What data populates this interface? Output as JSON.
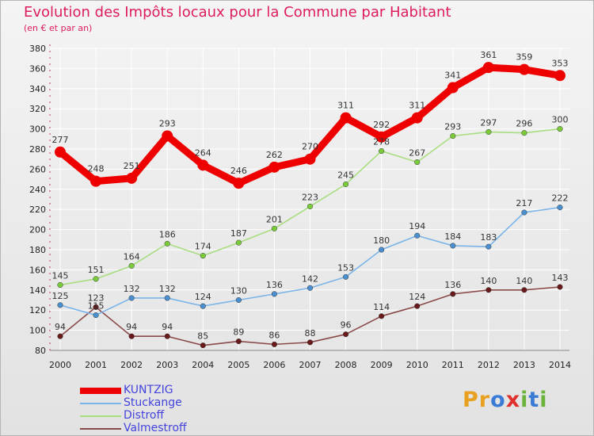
{
  "title": "Evolution des Impôts locaux pour la Commune par Habitant",
  "subtitle": "(en € et par an)",
  "logo_text": "Proxiti",
  "colors": {
    "title": "#dd1d5b",
    "axis_text": "#222222",
    "grid": "#ffffff",
    "legend_text": "#4444dd",
    "logo": [
      "#e8a020",
      "#e8a020",
      "#3a7bd5",
      "#e0302c",
      "#6bb33a",
      "#3a7bd5",
      "#6bb33a"
    ]
  },
  "chart_data": {
    "type": "line",
    "x": [
      "2000",
      "2001",
      "2002",
      "2003",
      "2004",
      "2005",
      "2006",
      "2007",
      "2008",
      "2009",
      "2010",
      "2011",
      "2012",
      "2013",
      "2014"
    ],
    "ylim": [
      80,
      380
    ],
    "yticks": [
      80,
      100,
      120,
      140,
      160,
      180,
      200,
      220,
      240,
      260,
      280,
      300,
      320,
      340,
      360,
      380
    ],
    "grid": true,
    "legend_position": "bottom-left",
    "series": [
      {
        "name": "KUNTZIG",
        "color": "#ee0000",
        "line_color": "#ee0000",
        "emphasis": true,
        "values": [
          277,
          248,
          251,
          293,
          264,
          246,
          262,
          270,
          311,
          292,
          311,
          341,
          361,
          359,
          353
        ]
      },
      {
        "name": "Stuckange",
        "color": "#4a8fd0",
        "line_color": "#7ab4e8",
        "emphasis": false,
        "values": [
          125,
          115,
          132,
          132,
          124,
          130,
          136,
          142,
          153,
          180,
          194,
          184,
          183,
          217,
          222
        ]
      },
      {
        "name": "Distroff",
        "color": "#7acc3a",
        "line_color": "#a8dd80",
        "emphasis": false,
        "values": [
          145,
          151,
          164,
          186,
          174,
          187,
          201,
          223,
          245,
          278,
          267,
          293,
          297,
          296,
          300
        ]
      },
      {
        "name": "Valmestroff",
        "color": "#6a1a1a",
        "line_color": "#8a4a4a",
        "emphasis": false,
        "values": [
          94,
          123,
          94,
          94,
          85,
          89,
          86,
          88,
          96,
          114,
          124,
          136,
          140,
          140,
          143
        ]
      }
    ]
  }
}
